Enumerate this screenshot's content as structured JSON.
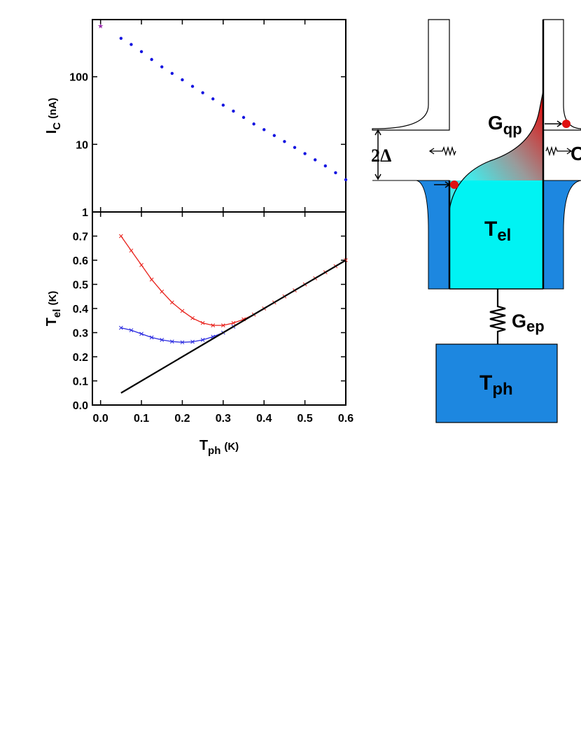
{
  "chart_data": [
    {
      "type": "scatter",
      "ylabel": [
        "I",
        "C",
        "(nA)"
      ],
      "xlim": [
        -0.02,
        0.6
      ],
      "ylim": [
        1,
        700
      ],
      "ylog": true,
      "yticks": [
        1,
        10,
        100
      ],
      "series": [
        {
          "color": "#1414e0",
          "marker": "dot",
          "x": [
            0.05,
            0.075,
            0.1,
            0.125,
            0.15,
            0.175,
            0.2,
            0.225,
            0.25,
            0.275,
            0.3,
            0.325,
            0.35,
            0.375,
            0.4,
            0.425,
            0.45,
            0.475,
            0.5,
            0.525,
            0.55,
            0.575,
            0.6
          ],
          "values": [
            370,
            300,
            235,
            180,
            140,
            112,
            90,
            72,
            58,
            47,
            38,
            31,
            25,
            20,
            16.5,
            13.5,
            11,
            9,
            7.3,
            5.9,
            4.8,
            3.8,
            3.0
          ]
        },
        {
          "color": "#9b2fae",
          "marker": "star",
          "x": [
            0
          ],
          "values": [
            560
          ]
        }
      ]
    },
    {
      "type": "line",
      "xlabel": [
        "T",
        "ph",
        "(K)"
      ],
      "ylabel": [
        "T",
        "el",
        "(K)"
      ],
      "xlim": [
        -0.02,
        0.6
      ],
      "ylim": [
        0,
        0.8
      ],
      "xticks": [
        {
          "value": 0,
          "label": "0.0"
        },
        0.1,
        0.2,
        0.3,
        0.4,
        0.5,
        0.6
      ],
      "yticks": [
        {
          "value": 0,
          "label": "0.0"
        },
        0.1,
        0.2,
        0.3,
        0.4,
        0.5,
        0.6,
        0.7
      ],
      "series": [
        {
          "color": "#e8201a",
          "marker": "x",
          "x": [
            0.05,
            0.075,
            0.1,
            0.125,
            0.15,
            0.175,
            0.2,
            0.225,
            0.25,
            0.275,
            0.3,
            0.325,
            0.35,
            0.375,
            0.4,
            0.425,
            0.45,
            0.475,
            0.5,
            0.525,
            0.55,
            0.575,
            0.6
          ],
          "values": [
            0.7,
            0.64,
            0.58,
            0.52,
            0.47,
            0.425,
            0.39,
            0.36,
            0.34,
            0.33,
            0.33,
            0.34,
            0.355,
            0.375,
            0.4,
            0.425,
            0.45,
            0.475,
            0.5,
            0.525,
            0.55,
            0.575,
            0.6
          ]
        },
        {
          "color": "#2a2ae0",
          "marker": "x",
          "x": [
            0.05,
            0.075,
            0.1,
            0.125,
            0.15,
            0.175,
            0.2,
            0.225,
            0.25,
            0.275,
            0.3,
            0.325
          ],
          "values": [
            0.32,
            0.31,
            0.295,
            0.28,
            0.27,
            0.263,
            0.26,
            0.262,
            0.27,
            0.283,
            0.3,
            0.325
          ]
        },
        {
          "color": "#000000",
          "marker": "none",
          "x": [
            0.05,
            0.6
          ],
          "values": [
            0.05,
            0.6
          ]
        }
      ]
    }
  ],
  "diagram": {
    "gqp": [
      "G",
      "qp"
    ],
    "gap": "2Δ",
    "right_cut": "C",
    "tel": [
      "T",
      "el"
    ],
    "gep": [
      "G",
      "ep"
    ],
    "tph": [
      "T",
      "ph"
    ]
  }
}
